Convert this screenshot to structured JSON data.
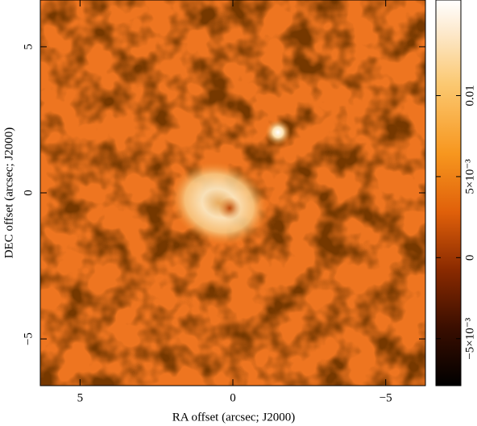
{
  "chart_data": {
    "type": "image",
    "xlabel": "RA offset (arcsec; J2000)",
    "ylabel": "DEC offset (arcsec; J2000)",
    "xlim": [
      6.3,
      -6.3
    ],
    "ylim": [
      -6.6,
      6.6
    ],
    "xticks": [
      5,
      0,
      {
        "value": -5,
        "label": "−5"
      }
    ],
    "yticks": [
      {
        "value": -5,
        "label": "−5"
      },
      0,
      5
    ],
    "clim": [
      -0.0079,
      0.0159
    ],
    "cticks": [
      {
        "value": -0.005,
        "label": "−5×10⁻³"
      },
      0,
      {
        "value": 0.005,
        "label": "5×10⁻³"
      },
      0.01
    ]
  }
}
